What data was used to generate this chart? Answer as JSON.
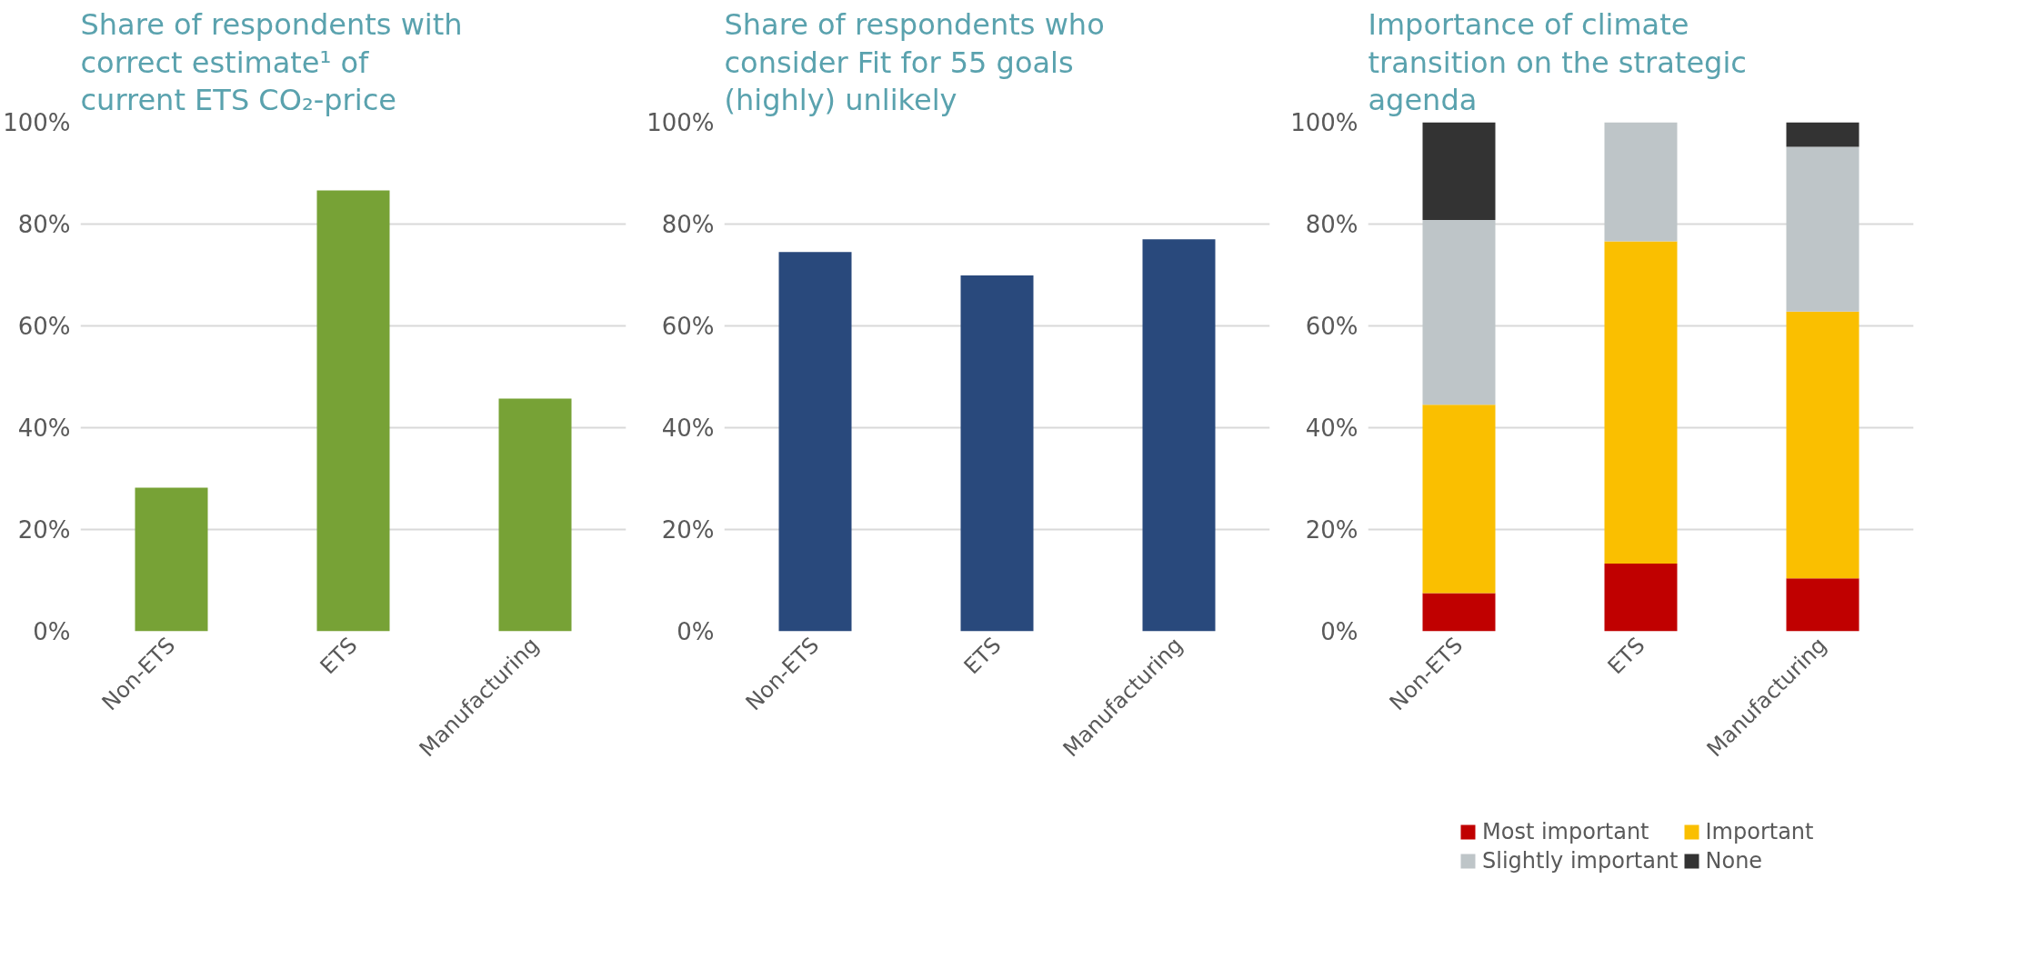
{
  "chart_data": [
    {
      "type": "bar",
      "title": "Share of respondents with correct estimate¹ of current ETS CO₂-price",
      "categories": [
        "Non-ETS",
        "ETS",
        "Manufacturing"
      ],
      "values": [
        28.2,
        86.6,
        45.7
      ],
      "color": "#77a236",
      "ylim": [
        0,
        100
      ],
      "yticks": [
        {
          "value": 0,
          "label": "0%"
        },
        {
          "value": 20,
          "label": "20%"
        },
        {
          "value": 40,
          "label": "40%"
        },
        {
          "value": 60,
          "label": "60%"
        },
        {
          "value": 80,
          "label": "80%"
        },
        {
          "value": 100,
          "label": "100%"
        }
      ],
      "grid": "y"
    },
    {
      "type": "bar",
      "title": "Share of respondents who consider Fit for 55 goals (highly) unlikely",
      "categories": [
        "Non-ETS",
        "ETS",
        "Manufacturing"
      ],
      "values": [
        74.5,
        69.9,
        77.0
      ],
      "color": "#29497c",
      "ylim": [
        0,
        100
      ],
      "yticks": [
        {
          "value": 0,
          "label": "0%"
        },
        {
          "value": 20,
          "label": "20%"
        },
        {
          "value": 40,
          "label": "40%"
        },
        {
          "value": 60,
          "label": "60%"
        },
        {
          "value": 80,
          "label": "80%"
        },
        {
          "value": 100,
          "label": "100%"
        }
      ],
      "grid": "y"
    },
    {
      "type": "bar",
      "title": "Importance of climate transition on the strategic agenda",
      "categories": [
        "Non-ETS",
        "ETS",
        "Manufacturing"
      ],
      "stacked": true,
      "legend": "bottom",
      "series": [
        {
          "name": "Most important",
          "color": "#c00000",
          "values": [
            7.5,
            13.3,
            10.4
          ]
        },
        {
          "name": "Important",
          "color": "#fabf00",
          "values": [
            37.0,
            63.3,
            52.4
          ]
        },
        {
          "name": "Slightly important",
          "color": "#bec5c8",
          "values": [
            36.3,
            23.4,
            32.4
          ]
        },
        {
          "name": "None",
          "color": "#333333",
          "values": [
            19.2,
            0,
            4.8
          ]
        }
      ],
      "ylim": [
        0,
        100
      ],
      "yticks": [
        {
          "value": 0,
          "label": "0%"
        },
        {
          "value": 20,
          "label": "20%"
        },
        {
          "value": 40,
          "label": "40%"
        },
        {
          "value": 60,
          "label": "60%"
        },
        {
          "value": 80,
          "label": "80%"
        },
        {
          "value": 100,
          "label": "100%"
        }
      ],
      "grid": "y"
    }
  ]
}
